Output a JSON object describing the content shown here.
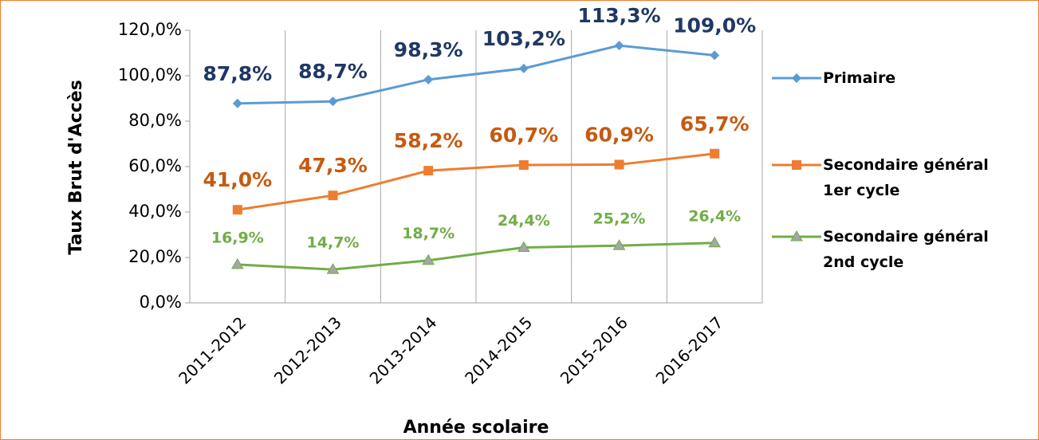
{
  "chart_data": {
    "type": "line",
    "xlabel": "Année scolaire",
    "ylabel": "Taux Brut d'Accès",
    "categories": [
      "2011-2012",
      "2012-2013",
      "2013-2014",
      "2014-2015",
      "2015-2016",
      "2016-2017"
    ],
    "series": [
      {
        "name": "Primaire",
        "color": "#5b9bd5",
        "label_color": "#1f3864",
        "marker": "diamond",
        "values": [
          87.8,
          88.7,
          98.3,
          103.2,
          113.3,
          109.0
        ],
        "value_labels": [
          "87,8%",
          "88,7%",
          "98,3%",
          "103,2%",
          "113,3%",
          "109,0%"
        ]
      },
      {
        "name": "Secondaire général 1er cycle",
        "color": "#ed7d31",
        "label_color": "#c55a11",
        "marker": "square",
        "values": [
          41.0,
          47.3,
          58.2,
          60.7,
          60.9,
          65.7
        ],
        "value_labels": [
          "41,0%",
          "47,3%",
          "58,2%",
          "60,7%",
          "60,9%",
          "65,7%"
        ]
      },
      {
        "name": "Secondaire général 2nd cycle",
        "color": "#70ad47",
        "label_color": "#70ad47",
        "marker": "triangle",
        "values": [
          16.9,
          14.7,
          18.7,
          24.4,
          25.2,
          26.4
        ],
        "value_labels": [
          "16,9%",
          "14,7%",
          "18,7%",
          "24,4%",
          "25,2%",
          "26,4%"
        ]
      }
    ],
    "ylim": [
      0,
      120
    ],
    "yticks": [
      {
        "value": 0,
        "label": "0,0%"
      },
      {
        "value": 20,
        "label": "20,0%"
      },
      {
        "value": 40,
        "label": "40,0%"
      },
      {
        "value": 60,
        "label": "60,0%"
      },
      {
        "value": 80,
        "label": "80,0%"
      },
      {
        "value": 100,
        "label": "100,0%"
      },
      {
        "value": 120,
        "label": "120,0%"
      }
    ],
    "grid": "vertical",
    "legend": "right"
  }
}
